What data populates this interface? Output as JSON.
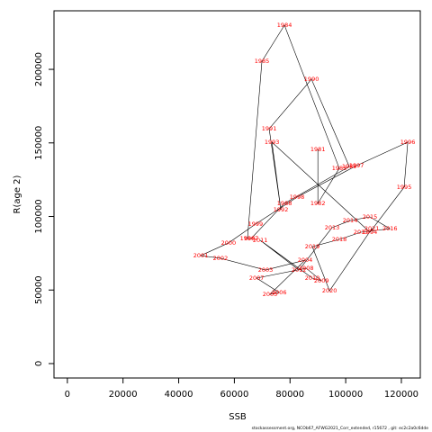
{
  "chart_data": {
    "type": "scatter",
    "x_label": "SSB",
    "y_label": "R(age 2)",
    "footer": "stockassessment.org, NCOb67_AFWG2021_Corr_extended, r15672 , git: ec2c2a0c6dde",
    "labels": [
      "1981",
      "1982",
      "1983",
      "1984",
      "1985",
      "1986",
      "1987",
      "1988",
      "1989",
      "1990",
      "1991",
      "1992",
      "1993",
      "1994",
      "1995",
      "1996",
      "1997",
      "1998",
      "1999",
      "2000",
      "2001",
      "2002",
      "2003",
      "2004",
      "2005",
      "2006",
      "2007",
      "2008",
      "2009",
      "2010",
      "2011",
      "2012",
      "2013",
      "2014",
      "2015",
      "2016",
      "2017",
      "2018",
      "2019",
      "2020",
      "2021"
    ],
    "x": [
      90000,
      90000,
      97700,
      78000,
      69900,
      64700,
      66000,
      78000,
      101300,
      87700,
      72500,
      76700,
      73500,
      108700,
      121000,
      122300,
      103900,
      82500,
      67600,
      57900,
      47900,
      55000,
      71200,
      85400,
      72800,
      76100,
      68000,
      85800,
      91300,
      88000,
      69300,
      83200,
      95100,
      101600,
      108700,
      115900,
      105500,
      97700,
      88000,
      94200,
      109400
    ],
    "values": [
      145600,
      108900,
      132700,
      230000,
      205500,
      85000,
      85000,
      108900,
      133900,
      193300,
      159600,
      104600,
      150500,
      89300,
      119900,
      150500,
      134600,
      113100,
      94800,
      82000,
      73400,
      71600,
      63600,
      70300,
      47100,
      48300,
      58100,
      64800,
      56300,
      58100,
      83800,
      63600,
      92400,
      97200,
      99700,
      91700,
      89300,
      84400,
      79500,
      49500,
      91700
    ],
    "color": "#ff0000",
    "line_color": "#000000",
    "xlim": [
      -4800,
      126800
    ],
    "ylim": [
      -9800,
      239800
    ],
    "xticks": [
      0,
      20000,
      40000,
      60000,
      80000,
      100000,
      120000
    ],
    "yticks": [
      0,
      50000,
      100000,
      150000,
      200000
    ]
  }
}
